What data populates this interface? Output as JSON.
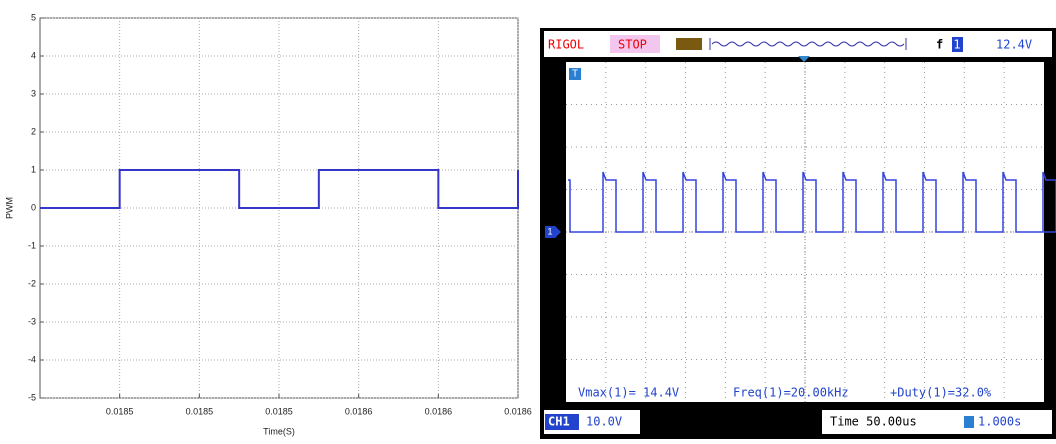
{
  "chart_data": {
    "type": "line",
    "x_label": "Time(S)",
    "y_label": "PWM",
    "xlim": [
      0.01848,
      0.0186
    ],
    "ylim": [
      -5,
      5
    ],
    "xticks": [
      {
        "value": 0.0185,
        "label": "0.0185"
      },
      {
        "value": 0.01852,
        "label": "0.0185"
      },
      {
        "value": 0.01854,
        "label": "0.0185"
      },
      {
        "value": 0.01856,
        "label": "0.0186"
      },
      {
        "value": 0.01858,
        "label": "0.0186"
      },
      {
        "value": 0.0186,
        "label": "0.0186"
      }
    ],
    "yticks": [
      -5,
      -4,
      -3,
      -2,
      -1,
      0,
      1,
      2,
      3,
      4,
      5
    ],
    "grid": true,
    "series": [
      {
        "color": "#3535c8",
        "x": [
          0.01848,
          0.0185,
          0.0185,
          0.01853,
          0.01853,
          0.01855,
          0.01855,
          0.01858,
          0.01858,
          0.0186,
          0.0186
        ],
        "values": [
          0,
          0,
          1,
          1,
          0,
          0,
          1,
          1,
          0,
          0,
          1
        ]
      }
    ]
  },
  "oscilloscope": {
    "brand": "RIGOL",
    "state": "STOP",
    "trigger_edge": "f",
    "trigger_source": "1",
    "trigger_level": "12.4V",
    "trigger_marker": "T",
    "channel_marker": "1",
    "measurements": [
      "Vmax(1)= 14.4V",
      "Freq(1)=20.00kHz",
      "+Duty(1)=32.0%"
    ],
    "channel": "CH1",
    "scale": "10.0V",
    "timebase": "Time 50.00us",
    "offset": "1.000s"
  }
}
